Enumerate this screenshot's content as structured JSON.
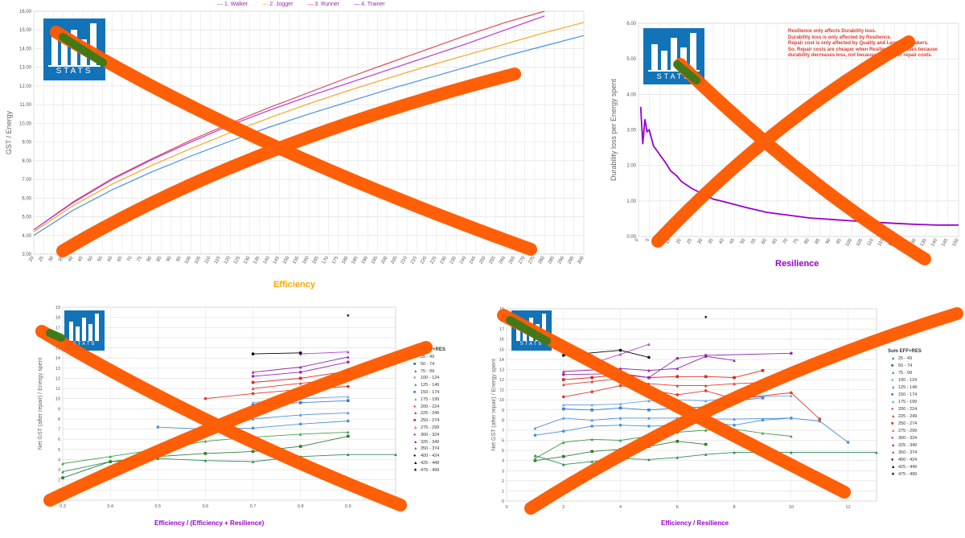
{
  "logo": {
    "word": "STATS"
  },
  "panels": {
    "p1": {
      "xlabel": "Efficiency",
      "ylabel": "GST / Energy",
      "xlabel_color": "#ffa500",
      "legend": [
        "1. Walker",
        "2. Jogger",
        "3. Runner",
        "4. Trainer"
      ]
    },
    "p2": {
      "xlabel": "Resilience",
      "ylabel": "Durability loss per Energy spent",
      "xlabel_color": "#9900cc",
      "note": [
        "Resilience only affects Durability loss.",
        "Durability loss is only affected by Resilience.",
        "Repair cost is only affected by Quality and Level of sneakers.",
        "So, Repair costs are cheaper when Resilience increases because",
        "durability decreases less, not because of cheaper repair costs."
      ]
    },
    "p3": {
      "xlabel": "Efficiency / (Efficiency + Resilience)",
      "ylabel": "Net GST (after repair) / Energy spent",
      "xlabel_color": "#9900cc",
      "legend_title": "Sum EFF+RES"
    },
    "p4": {
      "xlabel": "Efficiency / Resilience",
      "ylabel": "Net GST (after repair) / Energy spent",
      "xlabel_color": "#9900cc",
      "legend_title": "Sum EFF+RES"
    }
  },
  "legend_ranges": [
    {
      "label": "25 - 49",
      "color": "#2e8b57",
      "shape": "tri"
    },
    {
      "label": "50 - 74",
      "color": "#2e7d32",
      "shape": "sq"
    },
    {
      "label": "75 - 99",
      "color": "#43a047",
      "shape": "tri"
    },
    {
      "label": "100 - 124",
      "color": "#4a90d9",
      "shape": "circ"
    },
    {
      "label": "125 - 149",
      "color": "#4a90d9",
      "shape": "tri"
    },
    {
      "label": "150 - 174",
      "color": "#3b7dd8",
      "shape": "sq"
    },
    {
      "label": "175 - 199",
      "color": "#6aa7e8",
      "shape": "tri"
    },
    {
      "label": "200 - 224",
      "color": "#e0392b",
      "shape": "circ"
    },
    {
      "label": "225 - 249",
      "color": "#e0392b",
      "shape": "tri"
    },
    {
      "label": "250 - 274",
      "color": "#d62c1f",
      "shape": "sq"
    },
    {
      "label": "275 - 299",
      "color": "#f06050",
      "shape": "tri"
    },
    {
      "label": "300 - 324",
      "color": "#9c27b0",
      "shape": "circ"
    },
    {
      "label": "325 - 349",
      "color": "#8e24aa",
      "shape": "tri"
    },
    {
      "label": "350 - 374",
      "color": "#b53fd6",
      "shape": "tri"
    },
    {
      "label": "400 - 424",
      "color": "#000000",
      "shape": "circ"
    },
    {
      "label": "425 - 449",
      "color": "#000000",
      "shape": "tri"
    },
    {
      "label": "475 - 499",
      "color": "#000000",
      "shape": "star"
    }
  ],
  "chart_data": [
    {
      "type": "line",
      "x_ticks": [
        20,
        25,
        30,
        35,
        40,
        45,
        50,
        55,
        60,
        65,
        70,
        75,
        80,
        85,
        90,
        95,
        100,
        105,
        110,
        115,
        120,
        125,
        130,
        135,
        140,
        145,
        150,
        155,
        160,
        165,
        170,
        175,
        180,
        185,
        190,
        195,
        200,
        205,
        210,
        215,
        220,
        225,
        230,
        235,
        240,
        245,
        250,
        255,
        260,
        265,
        270,
        275,
        280,
        285,
        290,
        295,
        300
      ],
      "xlim": [
        20,
        300
      ],
      "ylim": [
        3,
        16
      ],
      "y_ticks": [
        "3.00",
        "4.00",
        "5.00",
        "6.00",
        "7.00",
        "8.00",
        "9.00",
        "10.00",
        "11.00",
        "12.00",
        "13.00",
        "14.00",
        "15.00",
        "16.00"
      ],
      "series": [
        {
          "name": "1. Walker",
          "color": "#4a90e2",
          "x": [
            20,
            40,
            60,
            80,
            100,
            120,
            140,
            160,
            180,
            200,
            220,
            240,
            260,
            280,
            300
          ],
          "values": [
            4.0,
            5.35,
            6.45,
            7.4,
            8.25,
            9.05,
            9.8,
            10.5,
            11.15,
            11.8,
            12.4,
            13.0,
            13.6,
            14.15,
            14.7
          ]
        },
        {
          "name": "2. Jogger",
          "color": "#f5a623",
          "x": [
            20,
            40,
            60,
            80,
            100,
            120,
            140,
            160,
            180,
            200,
            220,
            240,
            260,
            280,
            300
          ],
          "values": [
            4.2,
            5.6,
            6.75,
            7.75,
            8.65,
            9.5,
            10.3,
            11.05,
            11.75,
            12.4,
            13.05,
            13.65,
            14.25,
            14.85,
            15.4
          ]
        },
        {
          "name": "3. Runner",
          "color": "#e04a5f",
          "x": [
            20,
            40,
            60,
            80,
            100,
            120,
            140,
            160,
            180,
            200,
            220,
            240,
            260,
            280
          ],
          "values": [
            4.3,
            5.8,
            7.05,
            8.1,
            9.1,
            10.0,
            10.85,
            11.65,
            12.45,
            13.2,
            13.95,
            14.7,
            15.4,
            16.0
          ]
        },
        {
          "name": "4. Trainer",
          "color": "#b23cd9",
          "x": [
            20,
            40,
            60,
            80,
            100,
            120,
            140,
            160,
            180,
            200,
            220,
            240,
            260,
            280
          ],
          "values": [
            4.3,
            5.75,
            7.0,
            8.05,
            9.0,
            9.9,
            10.7,
            11.45,
            12.15,
            12.85,
            13.55,
            14.25,
            15.0,
            15.75
          ]
        }
      ]
    },
    {
      "type": "line",
      "x_ticks": [
        0,
        5,
        10,
        15,
        20,
        25,
        30,
        35,
        40,
        45,
        50,
        55,
        60,
        65,
        70,
        75,
        80,
        85,
        90,
        95,
        100,
        105,
        110,
        115,
        120,
        125,
        130,
        135,
        140,
        145,
        150
      ],
      "xlim": [
        0,
        150
      ],
      "ylim": [
        0,
        6
      ],
      "y_ticks": [
        "0.00",
        "1.00",
        "2.00",
        "3.00",
        "4.00",
        "5.00",
        "6.00"
      ],
      "series": [
        {
          "color": "#9900cc",
          "x": [
            1,
            2,
            3,
            4,
            5,
            7,
            10,
            13,
            15,
            18,
            20,
            25,
            30,
            35,
            40,
            45,
            50,
            55,
            60,
            70,
            80,
            90,
            100,
            110,
            120,
            130,
            140,
            150
          ],
          "values": [
            3.65,
            2.6,
            3.3,
            2.95,
            3.0,
            2.55,
            2.3,
            2.05,
            1.85,
            1.7,
            1.55,
            1.35,
            1.2,
            1.05,
            0.98,
            0.9,
            0.82,
            0.75,
            0.68,
            0.6,
            0.52,
            0.48,
            0.44,
            0.4,
            0.37,
            0.34,
            0.32,
            0.32
          ]
        }
      ]
    },
    {
      "type": "scatter",
      "xlim": [
        0.3,
        1.0
      ],
      "ylim": [
        0,
        19
      ],
      "x_ticks": [
        "0.3",
        "0.4",
        "0.5",
        "0.6",
        "0.7",
        "0.8",
        "0.9"
      ],
      "y_ticks": [
        "0",
        "1",
        "2",
        "3",
        "4",
        "5",
        "6",
        "7",
        "8",
        "9",
        "10",
        "11",
        "12",
        "13",
        "14",
        "15",
        "16",
        "17",
        "18",
        "19"
      ],
      "series": [
        {
          "name": "25 - 49",
          "color": "#2e8b57",
          "x": [
            0.3,
            0.4,
            0.5,
            0.6,
            0.7,
            0.8,
            0.9,
            1.0
          ],
          "values": [
            2.8,
            3.8,
            4.1,
            3.9,
            3.8,
            4.3,
            4.5,
            4.5
          ]
        },
        {
          "name": "50 - 74",
          "color": "#2e7d32",
          "x": [
            0.3,
            0.4,
            0.5,
            0.6,
            0.7,
            0.8,
            0.9
          ],
          "values": [
            2.2,
            3.8,
            4.3,
            4.6,
            4.8,
            5.3,
            6.3
          ]
        },
        {
          "name": "75 - 99",
          "color": "#43a047",
          "x": [
            0.3,
            0.4,
            0.5,
            0.6,
            0.7,
            0.8,
            0.9
          ],
          "values": [
            3.6,
            4.3,
            5.0,
            5.8,
            6.2,
            6.5,
            6.7
          ]
        },
        {
          "name": "100 - 124",
          "color": "#4a90d9",
          "x": [
            0.5,
            0.6,
            0.7,
            0.8,
            0.9
          ],
          "values": [
            7.2,
            7.0,
            7.1,
            7.5,
            7.8
          ]
        },
        {
          "name": "125 - 149",
          "color": "#4a90d9",
          "x": [
            0.6,
            0.7,
            0.8,
            0.9
          ],
          "values": [
            7.8,
            8.0,
            8.4,
            8.6
          ]
        },
        {
          "name": "150 - 174",
          "color": "#3b7dd8",
          "x": [
            0.7,
            0.8,
            0.9
          ],
          "values": [
            9.4,
            9.6,
            9.8
          ]
        },
        {
          "name": "175 - 199",
          "color": "#6aa7e8",
          "x": [
            0.7,
            0.8,
            0.9
          ],
          "values": [
            9.6,
            10.0,
            10.2
          ]
        },
        {
          "name": "200 - 224",
          "color": "#e0392b",
          "x": [
            0.6,
            0.7,
            0.8,
            0.9
          ],
          "values": [
            10.0,
            10.5,
            10.9,
            11.2
          ]
        },
        {
          "name": "225 - 249",
          "color": "#e0392b",
          "x": [
            0.7,
            0.8,
            0.9
          ],
          "values": [
            11.0,
            11.5,
            12.0
          ]
        },
        {
          "name": "250 - 274",
          "color": "#d62c1f",
          "x": [
            0.7,
            0.8,
            0.9
          ],
          "values": [
            11.6,
            12.0,
            12.7
          ]
        },
        {
          "name": "300 - 324",
          "color": "#9c27b0",
          "x": [
            0.7,
            0.8,
            0.9
          ],
          "values": [
            12.2,
            12.6,
            13.6
          ]
        },
        {
          "name": "325 - 349",
          "color": "#8e24aa",
          "x": [
            0.7,
            0.8,
            0.9
          ],
          "values": [
            12.6,
            13.1,
            14.1
          ]
        },
        {
          "name": "350 - 374",
          "color": "#b53fd6",
          "x": [
            0.8,
            0.9
          ],
          "values": [
            14.4,
            14.6
          ]
        },
        {
          "name": "400 - 424",
          "color": "#000000",
          "x": [
            0.7,
            0.8
          ],
          "values": [
            14.4,
            14.5
          ]
        },
        {
          "name": "475 - 499",
          "color": "#000000",
          "x": [
            0.9
          ],
          "values": [
            18.2
          ]
        }
      ]
    },
    {
      "type": "scatter",
      "xlim": [
        0,
        13
      ],
      "ylim": [
        0,
        19
      ],
      "x_ticks": [
        "0",
        "2",
        "4",
        "6",
        "8",
        "10",
        "12"
      ],
      "y_ticks": [
        "0",
        "1",
        "2",
        "3",
        "4",
        "5",
        "6",
        "7",
        "8",
        "9",
        "10",
        "11",
        "12",
        "13",
        "14",
        "15",
        "16",
        "17",
        "18",
        "19"
      ],
      "series": [
        {
          "name": "25 - 49",
          "color": "#2e8b57",
          "x": [
            1,
            2,
            3,
            4,
            5,
            6,
            7,
            8,
            10,
            13
          ],
          "values": [
            4.5,
            3.6,
            3.9,
            4.2,
            4.1,
            4.3,
            4.6,
            4.8,
            4.8,
            4.8
          ]
        },
        {
          "name": "50 - 74",
          "color": "#2e7d32",
          "x": [
            1,
            2,
            3,
            4,
            5,
            6,
            7
          ],
          "values": [
            4.0,
            4.4,
            4.9,
            5.1,
            5.4,
            5.9,
            5.6
          ]
        },
        {
          "name": "75 - 99",
          "color": "#43a047",
          "x": [
            1,
            2,
            3,
            4,
            5,
            6,
            7,
            8,
            9,
            10
          ],
          "values": [
            4.2,
            5.8,
            6.1,
            6.0,
            6.4,
            6.8,
            7.0,
            7.1,
            6.7,
            6.4
          ]
        },
        {
          "name": "100 - 124",
          "color": "#4a90d9",
          "x": [
            1,
            2,
            3,
            4,
            5,
            6,
            7,
            8,
            9,
            10,
            11,
            12
          ],
          "values": [
            6.5,
            6.9,
            7.4,
            7.5,
            7.4,
            7.5,
            7.8,
            7.5,
            8.0,
            8.2,
            7.9,
            5.8
          ]
        },
        {
          "name": "125 - 149",
          "color": "#4a90d9",
          "x": [
            1,
            2,
            3,
            4,
            5,
            6,
            7,
            8,
            10
          ],
          "values": [
            7.2,
            8.2,
            8.0,
            8.2,
            8.2,
            8.2,
            8.1,
            8.1,
            8.2
          ]
        },
        {
          "name": "150 - 174",
          "color": "#3b7dd8",
          "x": [
            2,
            3,
            4,
            5,
            6,
            7,
            8,
            9
          ],
          "values": [
            9.1,
            9.0,
            9.2,
            9.0,
            9.2,
            9.3,
            9.9,
            10.2
          ]
        },
        {
          "name": "175 - 199",
          "color": "#6aa7e8",
          "x": [
            2,
            3,
            4,
            5,
            6,
            7,
            8,
            10
          ],
          "values": [
            9.5,
            9.5,
            9.6,
            9.9,
            10.0,
            9.9,
            10.2,
            10.4
          ]
        },
        {
          "name": "200 - 224",
          "color": "#e0392b",
          "x": [
            2,
            3,
            4,
            5,
            6,
            7,
            8,
            10,
            11
          ],
          "values": [
            10.3,
            10.8,
            11.4,
            11.0,
            10.5,
            10.9,
            10.1,
            10.7,
            8.1
          ]
        },
        {
          "name": "225 - 249",
          "color": "#e0392b",
          "x": [
            2,
            3,
            4,
            5,
            6,
            7,
            8,
            9
          ],
          "values": [
            11.5,
            11.8,
            12.1,
            11.6,
            11.4,
            11.4,
            11.6,
            11.7
          ]
        },
        {
          "name": "250 - 274",
          "color": "#d62c1f",
          "x": [
            2,
            3,
            4,
            5,
            6,
            7,
            8,
            9
          ],
          "values": [
            12.0,
            12.2,
            12.5,
            12.2,
            12.3,
            12.3,
            12.2,
            12.9
          ]
        },
        {
          "name": "300 - 324",
          "color": "#9c27b0",
          "x": [
            2,
            4,
            5,
            6,
            7,
            10
          ],
          "values": [
            12.5,
            12.6,
            12.2,
            14.1,
            14.4,
            14.6
          ]
        },
        {
          "name": "325 - 349",
          "color": "#8e24aa",
          "x": [
            2,
            4,
            5,
            6,
            7,
            8
          ],
          "values": [
            12.8,
            13.1,
            12.9,
            13.1,
            14.3,
            13.9
          ]
        },
        {
          "name": "350 - 374",
          "color": "#b53fd6",
          "x": [
            3,
            4,
            5
          ],
          "values": [
            13.6,
            14.5,
            15.5
          ]
        },
        {
          "name": "400 - 424",
          "color": "#000000",
          "x": [
            2,
            4,
            5
          ],
          "values": [
            14.4,
            14.9,
            14.2
          ]
        },
        {
          "name": "425 - 449",
          "color": "#000000",
          "x": [
            3
          ],
          "values": [
            14.4
          ]
        },
        {
          "name": "475 - 499",
          "color": "#000000",
          "x": [
            7
          ],
          "values": [
            18.2
          ]
        }
      ]
    }
  ]
}
